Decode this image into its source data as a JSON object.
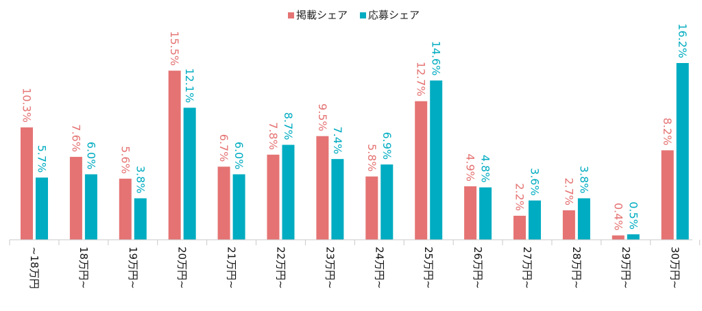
{
  "chart_data": {
    "type": "bar",
    "categories": [
      "~18万円",
      "18万円~",
      "19万円~",
      "20万円~",
      "21万円~",
      "22万円~",
      "23万円~",
      "24万円~",
      "25万円~",
      "26万円~",
      "27万円~",
      "28万円~",
      "29万円~",
      "30万円~"
    ],
    "series": [
      {
        "name": "掲載シェア",
        "color": "#E57373",
        "values": [
          10.3,
          7.6,
          5.6,
          15.5,
          6.7,
          7.8,
          9.5,
          5.8,
          12.7,
          4.9,
          2.2,
          2.7,
          0.4,
          8.2
        ],
        "labels": [
          "10.3%",
          "7.6%",
          "5.6%",
          "15.5%",
          "6.7%",
          "7.8%",
          "9.5%",
          "5.8%",
          "12.7%",
          "4.9%",
          "2.2%",
          "2.7%",
          "0.4%",
          "8.2%"
        ]
      },
      {
        "name": "応募シェア",
        "color": "#00ACC1",
        "values": [
          5.7,
          6.0,
          3.8,
          12.1,
          6.0,
          8.7,
          7.4,
          6.9,
          14.6,
          4.8,
          3.6,
          3.8,
          0.5,
          16.2
        ],
        "labels": [
          "5.7%",
          "6.0%",
          "3.8%",
          "12.1%",
          "6.0%",
          "8.7%",
          "7.4%",
          "6.9%",
          "14.6%",
          "4.8%",
          "3.6%",
          "3.8%",
          "0.5%",
          "16.2%"
        ]
      }
    ],
    "ylim": [
      0,
      16.2
    ],
    "unit": "%",
    "grid": false,
    "legend_position": "top-center",
    "title": "",
    "xlabel": "",
    "ylabel": ""
  }
}
